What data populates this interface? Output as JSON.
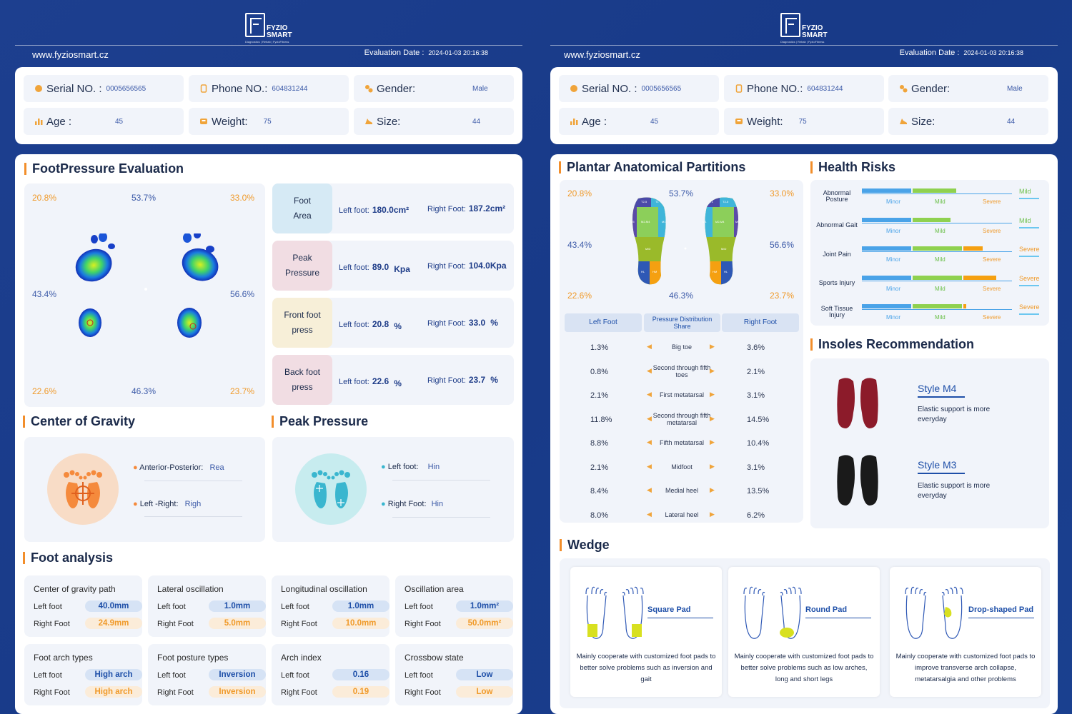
{
  "header": {
    "website": "www.fyziosmart.cz",
    "eval_label": "Evaluation Date :",
    "eval_date": "2024-01-03 20:16:38",
    "logo_line1": "FYZIO",
    "logo_line2": "SMART",
    "logo_sub": "Diagnostics | Rehab | FyzioFitness"
  },
  "info": {
    "serial_label": "Serial NO. :",
    "serial": "0005656565",
    "phone_label": "Phone NO.:",
    "phone": "604831244",
    "gender_label": "Gender:",
    "gender": "Male",
    "age_label": "Age :",
    "age": "45",
    "weight_label": "Weight:",
    "weight": "75",
    "size_label": "Size:",
    "size": "44"
  },
  "footpressure": {
    "title": "FootPressure Evaluation",
    "tl": "20.8%",
    "tc": "53.7%",
    "tr": "33.0%",
    "ml": "43.4%",
    "mr": "56.6%",
    "bl": "22.6%",
    "bc": "46.3%",
    "br": "23.7%",
    "metrics": [
      {
        "label1": "Foot",
        "label2": "Area",
        "left_label": "Left foot:",
        "left": "180.0cm²",
        "right_label": "Right Foot:",
        "right": "187.2cm²"
      },
      {
        "label1": "Peak",
        "label2": "Pressure",
        "left_label": "Left foot:",
        "left": "89.0",
        "left_unit": "Kpa",
        "right_label": "Right Foot:",
        "right": "104.0Kpa"
      },
      {
        "label1": "Front foot",
        "label2": "press",
        "left_label": "Left foot:",
        "left": "20.8",
        "left_unit": "%",
        "right_label": "Right Foot:",
        "right": "33.0",
        "right_unit": "%"
      },
      {
        "label1": "Back foot",
        "label2": "press",
        "left_label": "Left foot:",
        "left": "22.6",
        "left_unit": "%",
        "right_label": "Right Foot:",
        "right": "23.7",
        "right_unit": "%"
      }
    ]
  },
  "cog": {
    "title": "Center of Gravity",
    "ap_label": "Anterior-Posterior:",
    "ap": "Rea",
    "lr_label": "Left -Right:",
    "lr": "Righ"
  },
  "peak": {
    "title": "Peak Pressure",
    "left_label": "Left foot:",
    "left": "Hin",
    "right_label": "Right Foot:",
    "right": "Hin"
  },
  "analysis": {
    "title": "Foot analysis",
    "left_label": "Left foot",
    "right_label": "Right Foot",
    "cards": [
      {
        "title": "Center of gravity path",
        "left": "40.0mm",
        "right": "24.9mm"
      },
      {
        "title": "Lateral oscillation",
        "left": "1.0mm",
        "right": "5.0mm"
      },
      {
        "title": "Longitudinal oscillation",
        "left": "1.0mm",
        "right": "10.0mm"
      },
      {
        "title": "Oscillation area",
        "left": "1.0mm²",
        "right": "50.0mm²"
      },
      {
        "title": "Foot arch types",
        "left": "High arch",
        "right": "High arch"
      },
      {
        "title": "Foot posture types",
        "left": "Inversion",
        "right": "Inversion"
      },
      {
        "title": "Arch index",
        "left": "0.16",
        "right": "0.19"
      },
      {
        "title": "Crossbow state",
        "left": "Low",
        "right": "Low"
      }
    ]
  },
  "plantar": {
    "title": "Plantar Anatomical Partitions",
    "tl": "20.8%",
    "tc": "53.7%",
    "tr": "33.0%",
    "ml": "43.4%",
    "mr": "56.6%",
    "bl": "22.6%",
    "bc": "46.3%",
    "br": "23.7%",
    "zones": {
      "t25": "T2-5",
      "t1": "T1",
      "m1": "M1",
      "m24": "M2-M4",
      "m5": "M5",
      "mid": "MID",
      "hl": "HL",
      "hm": "HM"
    },
    "col_left": "Left Foot",
    "col_mid": "Pressure Distribution Share",
    "col_right": "Right Foot",
    "rows": [
      {
        "name": "Big toe",
        "left": "1.3%",
        "right": "3.6%"
      },
      {
        "name": "Second through fifth toes",
        "left": "0.8%",
        "right": "2.1%"
      },
      {
        "name": "First metatarsal",
        "left": "2.1%",
        "right": "3.1%"
      },
      {
        "name": "Second through fifth metatarsal",
        "left": "11.8%",
        "right": "14.5%"
      },
      {
        "name": "Fifth metatarsal",
        "left": "8.8%",
        "right": "10.4%"
      },
      {
        "name": "Midfoot",
        "left": "2.1%",
        "right": "3.1%"
      },
      {
        "name": "Medial heel",
        "left": "8.4%",
        "right": "13.5%"
      },
      {
        "name": "Lateral heel",
        "left": "8.0%",
        "right": "6.2%"
      }
    ]
  },
  "health": {
    "title": "Health Risks",
    "minor": "Minor",
    "mild": "Mild",
    "severe": "Severe",
    "rows": [
      {
        "name": "Abnormal Posture",
        "level": "Mild",
        "blue": 0.33,
        "green": 0.29,
        "orange": 0
      },
      {
        "name": "Abnormal Gait",
        "level": "Mild",
        "blue": 0.33,
        "green": 0.25,
        "orange": 0
      },
      {
        "name": "Joint Pain",
        "level": "Severe",
        "blue": 0.33,
        "green": 0.33,
        "orange": 0.13
      },
      {
        "name": "Sports Injury",
        "level": "Severe",
        "blue": 0.33,
        "green": 0.33,
        "orange": 0.22
      },
      {
        "name": "Soft Tissue Injury",
        "level": "Severe",
        "blue": 0.33,
        "green": 0.33,
        "orange": 0.02
      }
    ],
    "colors": {
      "blue": "#4aa3e8",
      "green": "#8fd14f",
      "orange": "#f5a011"
    }
  },
  "insoles": {
    "title": "Insoles Recommendation",
    "items": [
      {
        "name": "Style M4",
        "desc": "Elastic support is more everyday",
        "color": "#8c1b2a"
      },
      {
        "name": "Style M3",
        "desc": "Elastic support is more everyday",
        "color": "#1a1a1a"
      }
    ]
  },
  "wedge": {
    "title": "Wedge",
    "items": [
      {
        "name": "Square Pad",
        "desc": "Mainly cooperate with customized foot pads to better solve problems such as inversion and gait"
      },
      {
        "name": "Round Pad",
        "desc": "Mainly cooperate with customized foot pads to better solve problems such as low arches, long and short legs"
      },
      {
        "name": "Drop-shaped Pad",
        "desc": "Mainly cooperate with customized foot pads to improve transverse arch collapse, metatarsalgia and other problems"
      }
    ]
  }
}
